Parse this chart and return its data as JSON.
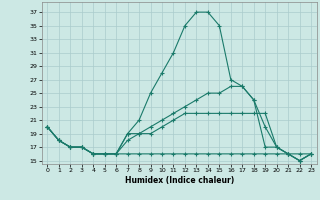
{
  "title": "",
  "xlabel": "Humidex (Indice chaleur)",
  "background_color": "#cce8e4",
  "grid_color": "#aacccc",
  "line_color": "#1a7a6a",
  "xlim": [
    -0.5,
    23.5
  ],
  "ylim": [
    14.5,
    38.5
  ],
  "xticks": [
    0,
    1,
    2,
    3,
    4,
    5,
    6,
    7,
    8,
    9,
    10,
    11,
    12,
    13,
    14,
    15,
    16,
    17,
    18,
    19,
    20,
    21,
    22,
    23
  ],
  "yticks": [
    15,
    17,
    19,
    21,
    23,
    25,
    27,
    29,
    31,
    33,
    35,
    37
  ],
  "line1_x": [
    0,
    1,
    2,
    3,
    4,
    5,
    6,
    7,
    8,
    9,
    10,
    11,
    12,
    13,
    14,
    15,
    16,
    17,
    18,
    19,
    20,
    21,
    22,
    23
  ],
  "line1_y": [
    20,
    18,
    17,
    17,
    16,
    16,
    16,
    19,
    21,
    25,
    28,
    31,
    35,
    37,
    37,
    35,
    27,
    26,
    24,
    20,
    17,
    16,
    15,
    16
  ],
  "line2_x": [
    0,
    1,
    2,
    3,
    4,
    5,
    6,
    7,
    8,
    9,
    10,
    11,
    12,
    13,
    14,
    15,
    16,
    17,
    18,
    19,
    20,
    21,
    22,
    23
  ],
  "line2_y": [
    20,
    18,
    17,
    17,
    16,
    16,
    16,
    19,
    19,
    19,
    20,
    21,
    22,
    22,
    22,
    22,
    22,
    22,
    22,
    22,
    17,
    16,
    15,
    16
  ],
  "line3_x": [
    0,
    1,
    2,
    3,
    4,
    5,
    6,
    7,
    8,
    9,
    10,
    11,
    12,
    13,
    14,
    15,
    16,
    17,
    18,
    19,
    20,
    21,
    22,
    23
  ],
  "line3_y": [
    20,
    18,
    17,
    17,
    16,
    16,
    16,
    18,
    19,
    20,
    21,
    22,
    23,
    24,
    25,
    25,
    26,
    26,
    24,
    17,
    17,
    16,
    15,
    16
  ],
  "line4_x": [
    0,
    1,
    2,
    3,
    4,
    5,
    6,
    7,
    8,
    9,
    10,
    11,
    12,
    13,
    14,
    15,
    16,
    17,
    18,
    19,
    20,
    21,
    22,
    23
  ],
  "line4_y": [
    20,
    18,
    17,
    17,
    16,
    16,
    16,
    16,
    16,
    16,
    16,
    16,
    16,
    16,
    16,
    16,
    16,
    16,
    16,
    16,
    16,
    16,
    16,
    16
  ]
}
